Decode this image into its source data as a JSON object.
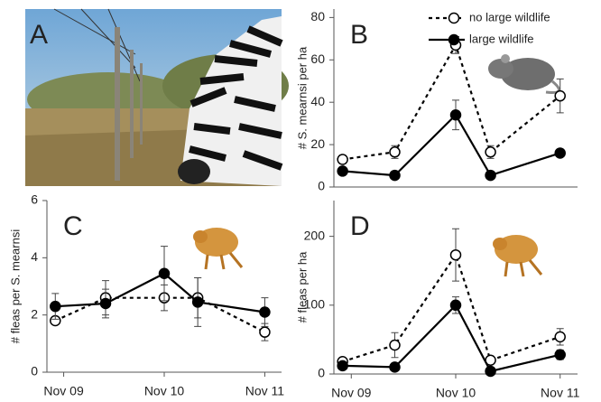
{
  "photo_panel": {
    "label": "A"
  },
  "chart_data": [
    {
      "type": "line",
      "panel_label": "B",
      "ylabel": "# S. mearnsi per ha",
      "x": [
        "2009-10",
        "2010-04",
        "2010-11",
        "2011-03",
        "2011-11"
      ],
      "xlim": [
        "2009-09",
        "2012-01"
      ],
      "ylim": [
        0,
        84
      ],
      "yticks": [
        0,
        20,
        40,
        60,
        80
      ],
      "legend": "upper right",
      "series": [
        {
          "name": "no large wildlife",
          "color": "#000000",
          "dash": true,
          "marker_fill": "#ffffff",
          "values": [
            13,
            16.5,
            67,
            16.5,
            43
          ],
          "errors": [
            2,
            3,
            4,
            3,
            8
          ]
        },
        {
          "name": "large wildlife",
          "color": "#000000",
          "dash": false,
          "marker_fill": "#000000",
          "values": [
            7.5,
            5.5,
            34,
            5.5,
            16
          ],
          "errors": [
            0,
            0,
            7,
            0,
            0
          ]
        }
      ]
    },
    {
      "type": "line",
      "panel_label": "C",
      "ylabel": "# fleas per S. mearnsi",
      "x": [
        "2009-10",
        "2010-04",
        "2010-11",
        "2011-03",
        "2011-11"
      ],
      "xlim": [
        "2009-09",
        "2012-01"
      ],
      "xticks": [
        {
          "value": "2009-11",
          "label": "Nov 09"
        },
        {
          "value": "2010-11",
          "label": "Nov 10"
        },
        {
          "value": "2011-11",
          "label": "Nov 11"
        }
      ],
      "ylim": [
        0,
        6
      ],
      "yticks": [
        0,
        2,
        4,
        6
      ],
      "series": [
        {
          "color": "#000000",
          "dash": true,
          "marker_fill": "#ffffff",
          "values": [
            1.8,
            2.6,
            2.6,
            2.6,
            1.4
          ],
          "errors": [
            0.1,
            0.6,
            0.45,
            0.7,
            0.3
          ]
        },
        {
          "color": "#000000",
          "dash": false,
          "marker_fill": "#000000",
          "values": [
            2.3,
            2.4,
            3.45,
            2.45,
            2.1
          ],
          "errors": [
            0.45,
            0.5,
            0.95,
            0.85,
            0.5
          ]
        }
      ]
    },
    {
      "type": "line",
      "panel_label": "D",
      "ylabel": "# fleas per ha",
      "x": [
        "2009-10",
        "2010-04",
        "2010-11",
        "2011-03",
        "2011-11"
      ],
      "xlim": [
        "2009-09",
        "2012-01"
      ],
      "xticks": [
        {
          "value": "2009-11",
          "label": "Nov 09"
        },
        {
          "value": "2010-11",
          "label": "Nov 10"
        },
        {
          "value": "2011-11",
          "label": "Nov 11"
        }
      ],
      "ylim": [
        0,
        252
      ],
      "yticks": [
        0,
        100,
        200
      ],
      "series": [
        {
          "color": "#000000",
          "dash": true,
          "marker_fill": "#ffffff",
          "values": [
            18,
            42,
            173,
            20,
            54
          ],
          "errors": [
            5,
            18,
            38,
            4,
            12
          ]
        },
        {
          "color": "#000000",
          "dash": false,
          "marker_fill": "#000000",
          "values": [
            12,
            10,
            100,
            4,
            28
          ],
          "errors": [
            4,
            0,
            12,
            0,
            7
          ]
        }
      ]
    }
  ]
}
